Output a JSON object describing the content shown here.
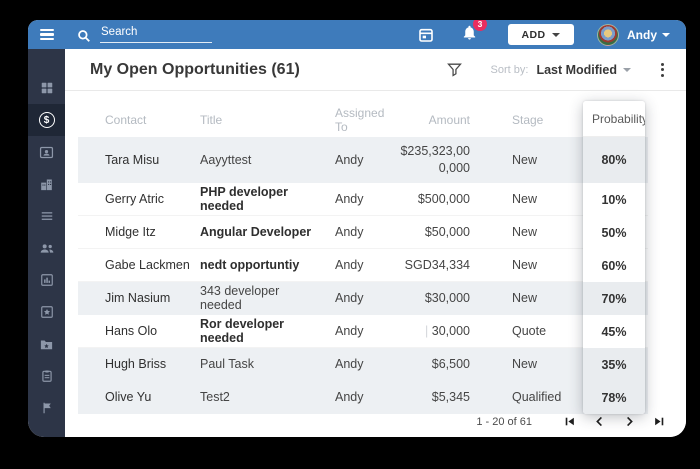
{
  "topbar": {
    "search_placeholder": "Search",
    "notification_count": "3",
    "add_button_label": "ADD",
    "user_name": "Andy",
    "accent_blue": "#3e7bbb",
    "badge_color": "#e92d5f"
  },
  "sidebar": {
    "bg_color": "#2d3547",
    "active_item": "opportunities",
    "icons": [
      "dashboard-grid-icon",
      "opportunities-dollar-icon",
      "contacts-card-icon",
      "accounts-building-icon",
      "list-icon",
      "team-users-icon",
      "reports-chart-icon",
      "campaigns-star-icon",
      "documents-folder-icon",
      "tasks-clipboard-icon",
      "flag-icon"
    ]
  },
  "header": {
    "title": "My Open Opportunities (61)",
    "sort_by_label": "Sort by:",
    "sort_value": "Last Modified"
  },
  "table": {
    "columns": [
      "Contact",
      "Title",
      "Assigned To",
      "Amount",
      "Stage"
    ],
    "floating_column": "Probability",
    "rows": [
      {
        "contact": "Tara Misu",
        "title": "Aayyttest",
        "title_bold": false,
        "assigned": "Andy",
        "amount_prefix": "",
        "amount": "$235,323,000,000",
        "stage": "New",
        "probability": "80%",
        "striped": true
      },
      {
        "contact": "Gerry Atric",
        "title": "PHP developer needed",
        "title_bold": true,
        "assigned": "Andy",
        "amount_prefix": "",
        "amount": "$500,000",
        "stage": "New",
        "probability": "10%",
        "striped": false
      },
      {
        "contact": "Midge Itz",
        "title": "Angular Developer",
        "title_bold": true,
        "assigned": "Andy",
        "amount_prefix": "",
        "amount": "$50,000",
        "stage": "New",
        "probability": "50%",
        "striped": false
      },
      {
        "contact": "Gabe Lackmen",
        "title": "nedt opportuntiy",
        "title_bold": true,
        "assigned": "Andy",
        "amount_prefix": "",
        "amount": "SGD34,334",
        "stage": "New",
        "probability": "60%",
        "striped": false
      },
      {
        "contact": "Jim Nasium",
        "title": "343 developer needed",
        "title_bold": false,
        "assigned": "Andy",
        "amount_prefix": "",
        "amount": "$30,000",
        "stage": "New",
        "probability": "70%",
        "striped": true
      },
      {
        "contact": "Hans Olo",
        "title": "Ror developer needed",
        "title_bold": true,
        "assigned": "Andy",
        "amount_prefix": "| ",
        "amount": "30,000",
        "stage": "Quote",
        "probability": "45%",
        "striped": false
      },
      {
        "contact": "Hugh Briss",
        "title": "Paul Task",
        "title_bold": false,
        "assigned": "Andy",
        "amount_prefix": "",
        "amount": "$6,500",
        "stage": "New",
        "probability": "35%",
        "striped": true
      },
      {
        "contact": "Olive Yu",
        "title": "Test2",
        "title_bold": false,
        "assigned": "Andy",
        "amount_prefix": "",
        "amount": "$5,345",
        "stage": "Qualified",
        "probability": "78%",
        "striped": true
      }
    ]
  },
  "pagination": {
    "range": "1 - 20 of 61"
  }
}
